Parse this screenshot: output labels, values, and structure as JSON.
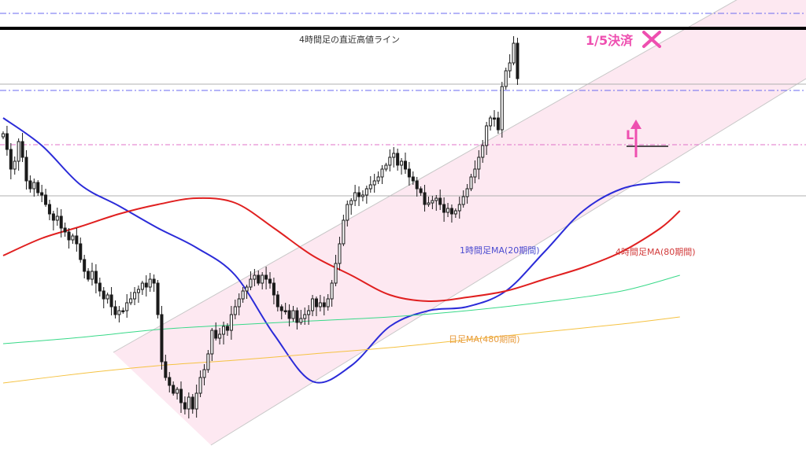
{
  "chart_data": {
    "type": "candlestick",
    "ylim": [
      0,
      576
    ],
    "x_count": 174,
    "colors": {
      "candle": "#1a1a1a",
      "ma_1h": "#2b2bd8",
      "ma_4h": "#e02020",
      "ma_green": "#38d988",
      "ma_daily": "#f5c242",
      "channel_fill": "#fde8f1",
      "channel_line": "#c8c8c8",
      "marker": "#ee4fb0",
      "dashdot_blue": "#6a6af0",
      "dashdot_pink": "#e070c8",
      "gray_line": "#b0b0b0"
    },
    "levels": {
      "recent_high_4h": 36,
      "dashdot_upper": 17,
      "gray_upper": 107,
      "dashdot_lower": 115,
      "pink_dashdot": 184,
      "gray_lower": 249
    },
    "annotations": {
      "recent_high_label": "4時間足の直近高値ライン",
      "settle_label": "1/5決済",
      "entry_label": "L",
      "ma_1h_label": "1時間足MA(20期間)",
      "ma_4h_label": "4時間足MA(80期間)",
      "ma_daily_label": "日足MA(480期間)"
    },
    "series": [
      {
        "name": "1時間足MA(20期間)",
        "x": [
          0,
          10,
          20,
          30,
          40,
          50,
          60,
          70,
          80,
          90,
          100,
          110,
          120,
          130,
          140,
          150,
          160,
          170,
          175
        ],
        "y": [
          150,
          185,
          235,
          262,
          290,
          315,
          350,
          425,
          485,
          465,
          415,
          395,
          390,
          370,
          320,
          268,
          240,
          232,
          232
        ]
      },
      {
        "name": "4時間足MA(80期間)",
        "x": [
          0,
          10,
          20,
          30,
          40,
          50,
          60,
          70,
          80,
          90,
          100,
          110,
          120,
          130,
          140,
          150,
          160,
          170,
          175
        ],
        "y": [
          325,
          303,
          288,
          272,
          260,
          252,
          258,
          290,
          325,
          350,
          375,
          383,
          378,
          370,
          355,
          340,
          320,
          290,
          268
        ]
      },
      {
        "name": "",
        "x": [
          0,
          20,
          40,
          60,
          80,
          100,
          120,
          140,
          160,
          175
        ],
        "y": [
          437,
          429,
          419,
          413,
          408,
          403,
          395,
          384,
          370,
          350
        ]
      },
      {
        "name": "日足MA(480期間)",
        "x": [
          0,
          20,
          40,
          60,
          80,
          100,
          120,
          140,
          160,
          175
        ],
        "y": [
          487,
          475,
          465,
          458,
          450,
          442,
          432,
          422,
          412,
          403
        ]
      }
    ],
    "candles_close": [
      170,
      190,
      215,
      205,
      180,
      200,
      230,
      240,
      232,
      245,
      248,
      260,
      272,
      280,
      275,
      290,
      295,
      305,
      300,
      310,
      330,
      345,
      355,
      345,
      360,
      370,
      380,
      375,
      390,
      400,
      395,
      395,
      385,
      380,
      372,
      368,
      360,
      365,
      355,
      360,
      400,
      460,
      480,
      490,
      500,
      495,
      512,
      520,
      505,
      520,
      500,
      480,
      470,
      450,
      420,
      430,
      425,
      415,
      420,
      400,
      390,
      380,
      370,
      365,
      355,
      350,
      360,
      350,
      355,
      360,
      375,
      390,
      395,
      395,
      405,
      395,
      410,
      405,
      400,
      395,
      380,
      390,
      385,
      390,
      380,
      360,
      335,
      310,
      280,
      260,
      255,
      245,
      250,
      248,
      240,
      235,
      230,
      225,
      215,
      210,
      200,
      195,
      210,
      205,
      215,
      225,
      230,
      240,
      245,
      260,
      258,
      255,
      252,
      260,
      270,
      265,
      272,
      268,
      260,
      250,
      240,
      225,
      215,
      200,
      185,
      160,
      150,
      150,
      165,
      110,
      90,
      80,
      55,
      100
    ]
  }
}
